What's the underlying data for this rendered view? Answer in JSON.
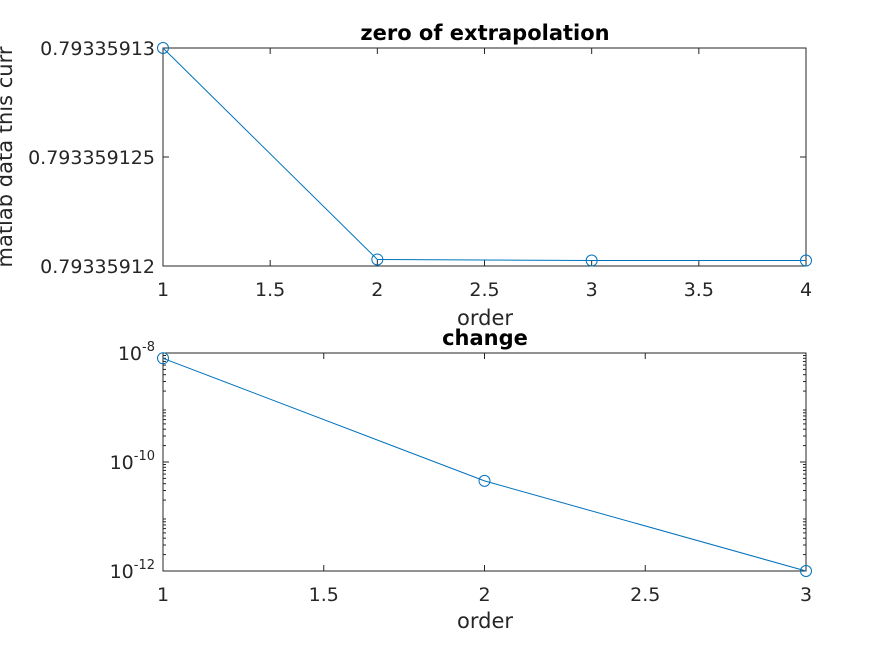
{
  "chart_data": [
    {
      "type": "line",
      "title": "zero of extrapolation",
      "xlabel": "order",
      "ylabel": "matlab data this curr",
      "x": [
        1,
        2,
        3,
        4
      ],
      "series": [
        {
          "values": [
            0.79335913,
            0.7933591203,
            0.79335912025,
            0.79335912025
          ],
          "color": "#0072BD",
          "marker": "circle"
        }
      ],
      "xlim": [
        1,
        4
      ],
      "ylim": [
        0.79335912,
        0.79335913
      ],
      "xticks": [
        1,
        1.5,
        2,
        2.5,
        3,
        3.5,
        4
      ],
      "xtick_labels": [
        "1",
        "1.5",
        "2",
        "2.5",
        "3",
        "3.5",
        "4"
      ],
      "yticks": [
        0.79335912,
        0.793359125,
        0.79335913
      ],
      "ytick_labels": [
        "0.79335912",
        "0.793359125",
        "0.79335913"
      ],
      "grid": false,
      "yscale": "linear"
    },
    {
      "type": "line",
      "title": "change",
      "xlabel": "order",
      "ylabel": "",
      "x": [
        1,
        2,
        3
      ],
      "series": [
        {
          "values": [
            8e-09,
            4.5e-11,
            1e-12
          ],
          "color": "#0072BD",
          "marker": "circle"
        }
      ],
      "xlim": [
        1,
        3
      ],
      "ylim": [
        1e-12,
        1e-08
      ],
      "xticks": [
        1,
        1.5,
        2,
        2.5,
        3
      ],
      "xtick_labels": [
        "1",
        "1.5",
        "2",
        "2.5",
        "3"
      ],
      "yticks": [
        1e-12,
        1e-10,
        1e-08
      ],
      "ytick_labels": [
        {
          "base": "10",
          "exp": "-12"
        },
        {
          "base": "10",
          "exp": "-10"
        },
        {
          "base": "10",
          "exp": "-8"
        }
      ],
      "grid": false,
      "yscale": "log"
    }
  ]
}
